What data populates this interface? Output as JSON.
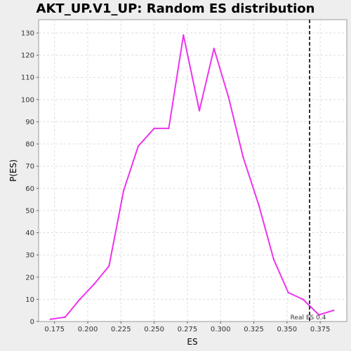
{
  "chart_data": {
    "type": "line",
    "title": "AKT_UP.V1_UP: Random ES distribution",
    "xlabel": "ES",
    "ylabel": "P(ES)",
    "xlim": [
      0.163,
      0.395
    ],
    "ylim": [
      0,
      136
    ],
    "x_ticks": [
      "0.175",
      "0.200",
      "0.225",
      "0.250",
      "0.275",
      "0.300",
      "0.325",
      "0.350",
      "0.375"
    ],
    "x_tick_values": [
      0.175,
      0.2,
      0.225,
      0.25,
      0.275,
      0.3,
      0.325,
      0.35,
      0.375
    ],
    "y_ticks": [
      0,
      10,
      20,
      30,
      40,
      50,
      60,
      70,
      80,
      90,
      100,
      110,
      120,
      130
    ],
    "grid": true,
    "series": [
      {
        "color": "#ee33ee",
        "x": [
          0.172,
          0.183,
          0.194,
          0.205,
          0.216,
          0.227,
          0.238,
          0.25,
          0.261,
          0.272,
          0.284,
          0.295,
          0.306,
          0.317,
          0.329,
          0.34,
          0.351,
          0.362,
          0.374,
          0.385
        ],
        "y": [
          1,
          2,
          10,
          17,
          25,
          59,
          79,
          87,
          87,
          129,
          95,
          123,
          101,
          74,
          52,
          28,
          13,
          10,
          3,
          5
        ]
      }
    ],
    "real_es": {
      "x": 0.367,
      "label": "Real ES 0.4",
      "color": "#333333"
    }
  }
}
